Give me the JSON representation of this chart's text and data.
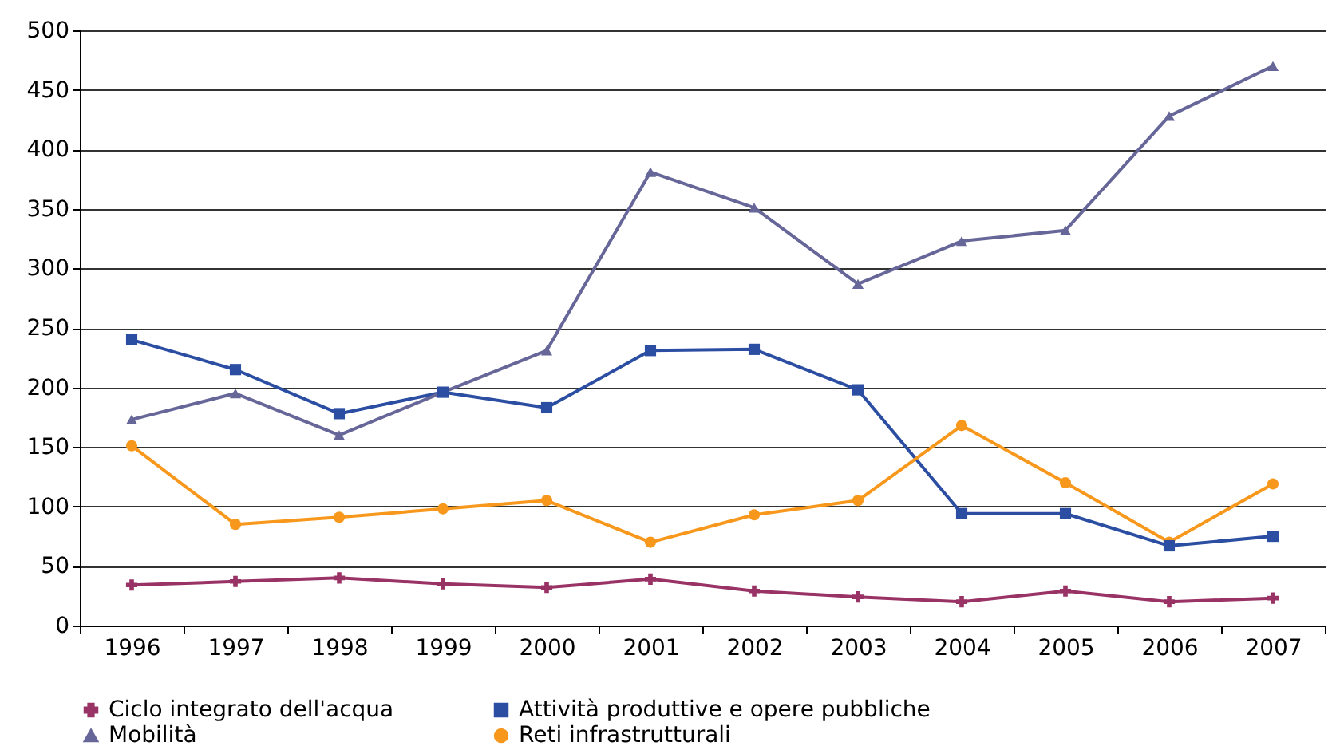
{
  "chart_data": {
    "type": "line",
    "categories": [
      "1996",
      "1997",
      "1998",
      "1999",
      "2000",
      "2001",
      "2002",
      "2003",
      "2004",
      "2005",
      "2006",
      "2007"
    ],
    "series": [
      {
        "name": "Ciclo integrato dell'acqua",
        "color": "#993366",
        "marker": "cross",
        "values": [
          34,
          37,
          40,
          35,
          32,
          39,
          29,
          24,
          20,
          29,
          20,
          23
        ]
      },
      {
        "name": "Attività produttive e opere pubbliche",
        "color": "#2b4ea2",
        "marker": "square",
        "values": [
          240,
          215,
          178,
          196,
          183,
          231,
          232,
          198,
          94,
          94,
          67,
          75
        ]
      },
      {
        "name": "Mobilità",
        "color": "#666699",
        "marker": "triangle",
        "values": [
          173,
          195,
          160,
          196,
          231,
          381,
          351,
          287,
          323,
          332,
          428,
          470
        ]
      },
      {
        "name": "Reti infrastrutturali",
        "color": "#f7981d",
        "marker": "circle",
        "values": [
          151,
          85,
          91,
          98,
          105,
          70,
          93,
          105,
          168,
          120,
          70,
          119
        ]
      }
    ],
    "ylim": [
      0,
      500
    ],
    "yticks": [
      0,
      50,
      100,
      150,
      200,
      250,
      300,
      350,
      400,
      450,
      500
    ],
    "grid": "y",
    "legend": "bottom"
  }
}
